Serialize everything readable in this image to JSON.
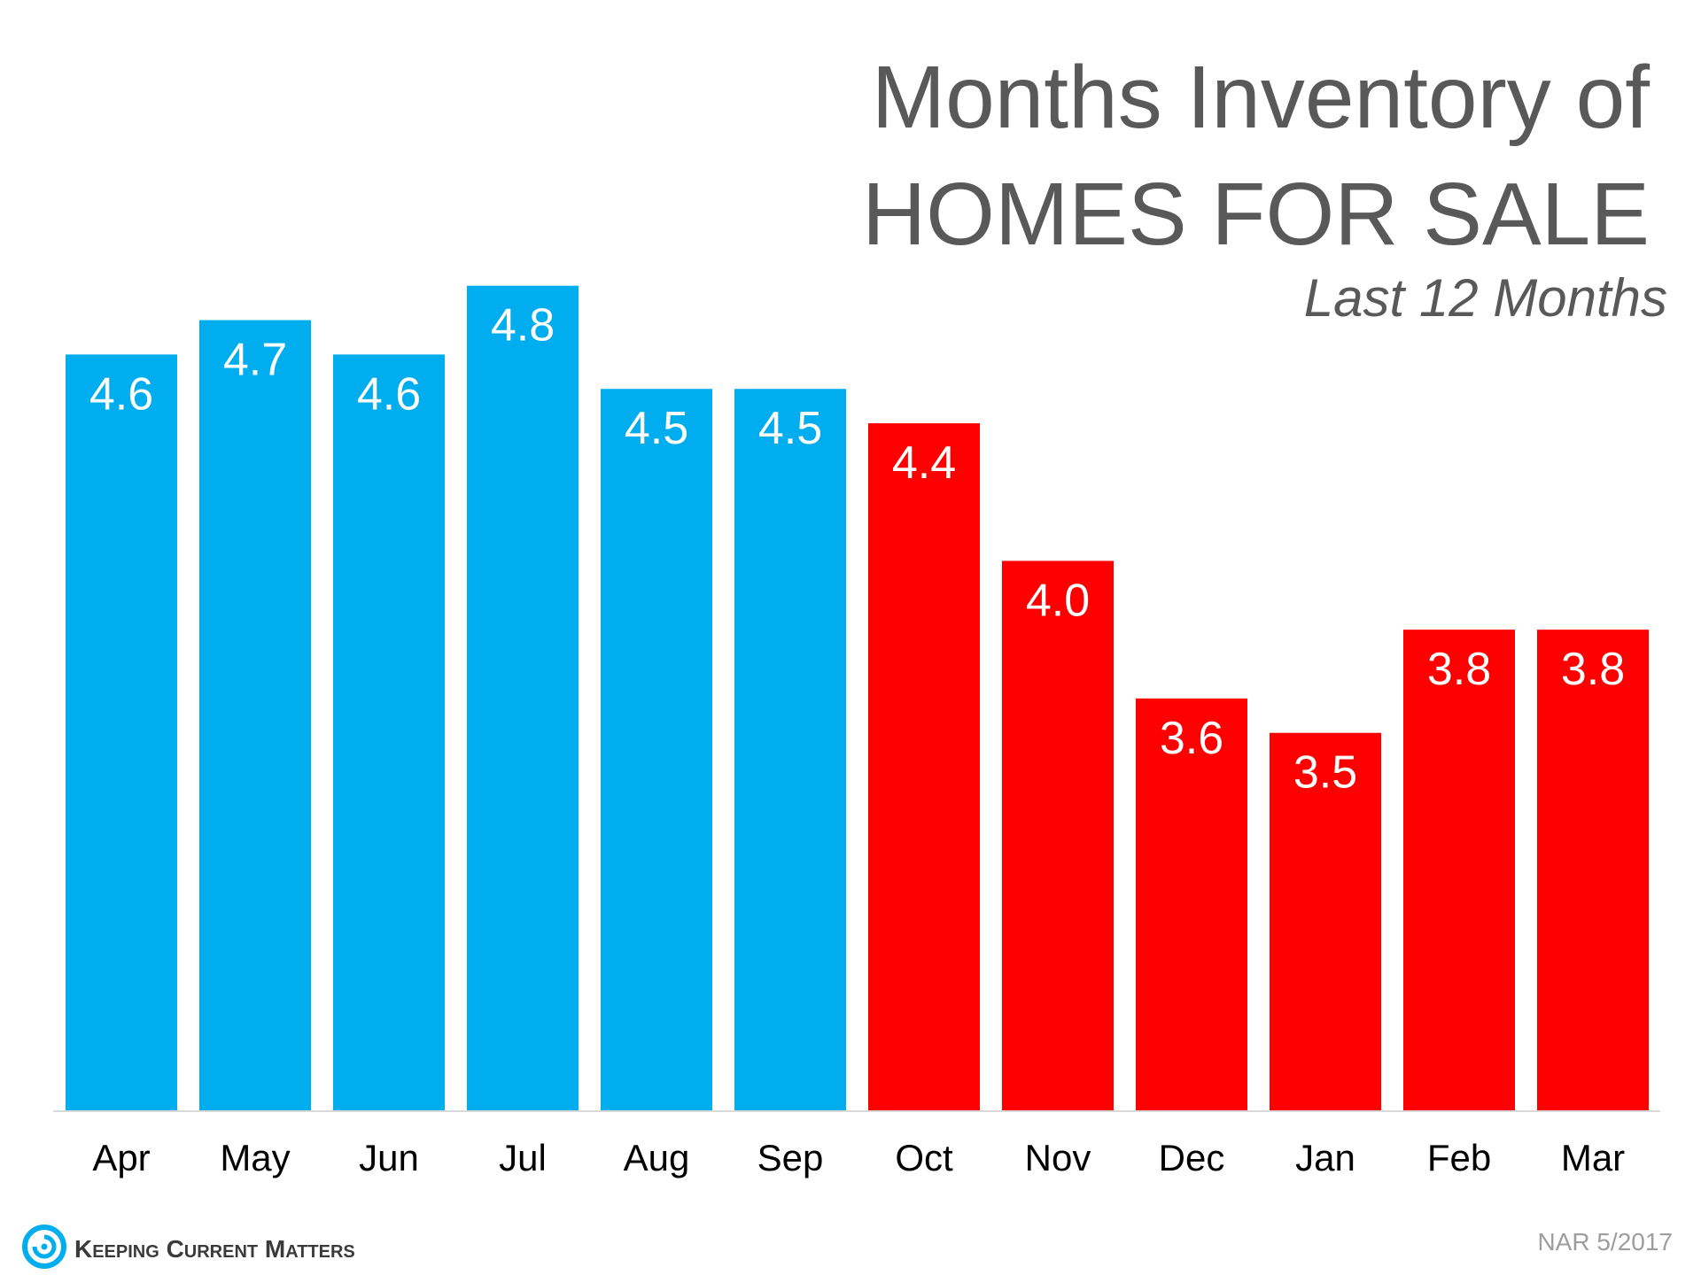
{
  "chart_data": {
    "type": "bar",
    "title_lines": [
      "Months Inventory of",
      "HOMES FOR SALE"
    ],
    "subtitle": "Last 12 Months",
    "categories": [
      "Apr",
      "May",
      "Jun",
      "Jul",
      "Aug",
      "Sep",
      "Oct",
      "Nov",
      "Dec",
      "Jan",
      "Feb",
      "Mar"
    ],
    "values": [
      4.6,
      4.7,
      4.6,
      4.8,
      4.5,
      4.5,
      4.4,
      4.0,
      3.6,
      3.5,
      3.8,
      3.8
    ],
    "value_labels": [
      "4.6",
      "4.7",
      "4.6",
      "4.8",
      "4.5",
      "4.5",
      "4.4",
      "4.0",
      "3.6",
      "3.5",
      "3.8",
      "3.8"
    ],
    "bar_colors": [
      "#00adee",
      "#00adee",
      "#00adee",
      "#00adee",
      "#00adee",
      "#00adee",
      "#fe0000",
      "#fe0000",
      "#fe0000",
      "#fe0000",
      "#fe0000",
      "#fe0000"
    ],
    "xlabel": "",
    "ylabel": "",
    "ylim": [
      2.4,
      5.0
    ],
    "grid": false,
    "legend": "none",
    "axis_line_color": "#d9d9d9"
  },
  "branding": {
    "brand_text": "Keeping Current Matters",
    "brand_icon": "swirl-logo-icon",
    "brand_color": "#00adee",
    "source_text": "NAR 5/2017"
  }
}
